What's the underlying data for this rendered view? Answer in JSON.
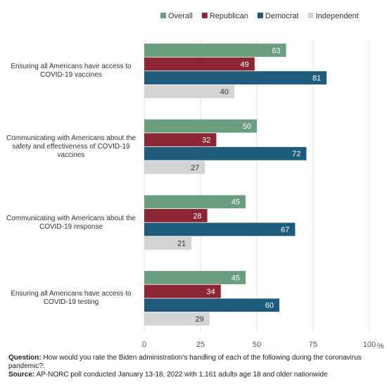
{
  "chart_data": {
    "type": "hbar",
    "categories": [
      "Ensuring all Americans have access to COVID-19 vaccines",
      "Communicating with Americans about the safety and effectiveness of COVID-19 vaccines",
      "Communicating with Americans about the COVID-19 response",
      "Ensuring all Americans have access to COVID-19 testing"
    ],
    "series": [
      {
        "name": "Overall",
        "color": "#6a9e7f",
        "values": [
          63,
          50,
          45,
          45
        ]
      },
      {
        "name": "Republican",
        "color": "#8c2635",
        "values": [
          49,
          32,
          28,
          34
        ]
      },
      {
        "name": "Democrat",
        "color": "#1f5b7a",
        "values": [
          81,
          72,
          67,
          60
        ]
      },
      {
        "name": "Independent",
        "color": "#d4d4d4",
        "values": [
          40,
          27,
          21,
          29
        ]
      }
    ],
    "xlim": [
      0,
      100
    ],
    "xticks": [
      0,
      25,
      50,
      75,
      100
    ],
    "x_unit": "%",
    "grid": true,
    "legend": "top",
    "notes": {
      "question_label": "Question:",
      "question": "How would you rate the Biden administration’s handling of each of the following during the coronavirus pandemic?:",
      "source_label": "Source:",
      "source": "AP-NORC poll conducted January 13-18, 2022 with 1,161 adults age 18 and older nationwide"
    }
  }
}
